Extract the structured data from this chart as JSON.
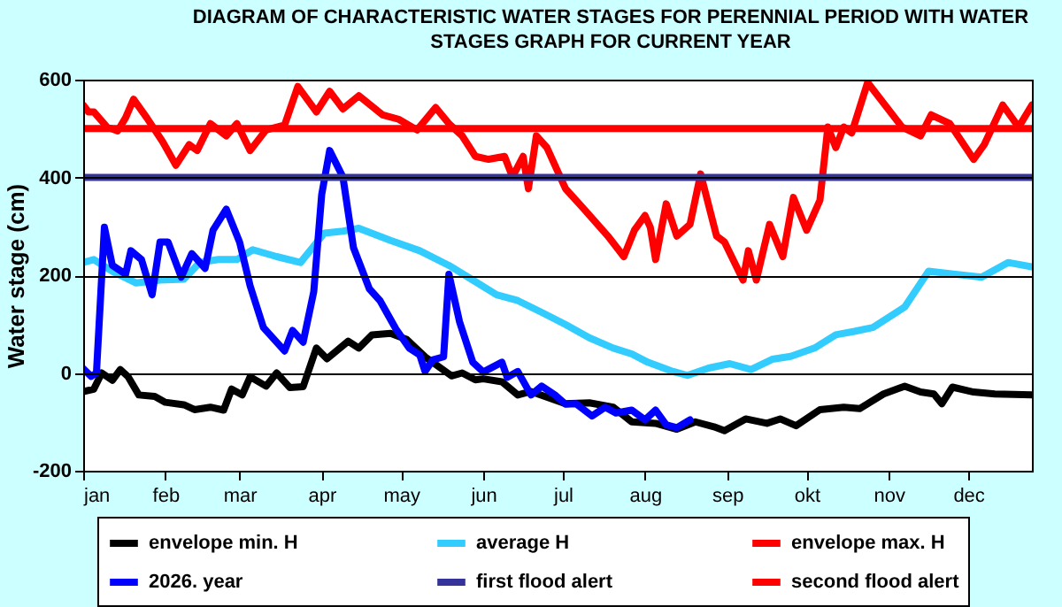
{
  "chart_data": {
    "type": "line",
    "title": "DIAGRAM OF CHARACTERISTIC WATER STAGES FOR PERENNIAL PERIOD WITH WATER STAGES GRAPH FOR CURRENT YEAR",
    "ylabel": "Water stage (cm)",
    "xlim": [
      "--01-01",
      "--12-25"
    ],
    "xticks": [
      {
        "value": "--01-01",
        "label": "jan"
      },
      {
        "value": "--02-01",
        "label": "feb"
      },
      {
        "value": "--03-01",
        "label": "mar"
      },
      {
        "value": "--04-01",
        "label": "apr"
      },
      {
        "value": "--05-01",
        "label": "may"
      },
      {
        "value": "--06-01",
        "label": "jun"
      },
      {
        "value": "--07-01",
        "label": "jul"
      },
      {
        "value": "--08-01",
        "label": "aug"
      },
      {
        "value": "--09-01",
        "label": "sep"
      },
      {
        "value": "--10-01",
        "label": "okt"
      },
      {
        "value": "--11-01",
        "label": "nov"
      },
      {
        "value": "--12-01",
        "label": "dec"
      }
    ],
    "ylim": [
      -200,
      600
    ],
    "yticks": [
      -200,
      0,
      200,
      400,
      600
    ],
    "grid": "y",
    "legend": "bottom",
    "line_style": "solid",
    "series": [
      {
        "name": "envelope min. H",
        "color": "#000000",
        "x": [
          "--01-01",
          "--01-05",
          "--01-08",
          "--01-12",
          "--01-15",
          "--01-18",
          "--01-22",
          "--01-28",
          "--02-01",
          "--02-08",
          "--02-12",
          "--02-18",
          "--02-23",
          "--02-26",
          "--03-02",
          "--03-05",
          "--03-11",
          "--03-15",
          "--03-20",
          "--03-25",
          "--03-30",
          "--04-03",
          "--04-11",
          "--04-15",
          "--04-20",
          "--04-27",
          "--05-03",
          "--05-10",
          "--05-20",
          "--05-24",
          "--05-29",
          "--06-01",
          "--06-08",
          "--06-14",
          "--06-19",
          "--07-02",
          "--07-11",
          "--07-20",
          "--07-27",
          "--08-05",
          "--08-13",
          "--08-20",
          "--08-27",
          "--08-31",
          "--09-08",
          "--09-16",
          "--09-21",
          "--09-27",
          "--10-06",
          "--10-15",
          "--10-21",
          "--10-30",
          "--11-07",
          "--11-13",
          "--11-18",
          "--11-21",
          "--11-25",
          "--12-03",
          "--12-11",
          "--12-25"
        ],
        "values": [
          -38,
          -33,
          0,
          -15,
          7,
          -8,
          -45,
          -48,
          -60,
          -65,
          -75,
          -70,
          -76,
          -33,
          -45,
          -8,
          -27,
          0,
          -30,
          -28,
          51,
          29,
          65,
          51,
          78,
          81,
          69,
          33,
          -6,
          0,
          -14,
          -12,
          -18,
          -45,
          -38,
          -63,
          -61,
          -70,
          -100,
          -103,
          -115,
          -100,
          -110,
          -118,
          -94,
          -103,
          -94,
          -108,
          -75,
          -70,
          -73,
          -43,
          -27,
          -39,
          -43,
          -63,
          -29,
          -39,
          -43,
          -45
        ]
      },
      {
        "name": "average H",
        "color": "#33ccff",
        "x": [
          "--01-01",
          "--01-05",
          "--01-12",
          "--01-21",
          "--01-30",
          "--02-08",
          "--02-14",
          "--02-21",
          "--02-28",
          "--03-06",
          "--03-15",
          "--03-24",
          "--04-02",
          "--04-09",
          "--04-15",
          "--04-27",
          "--05-08",
          "--05-19",
          "--05-28",
          "--06-06",
          "--06-14",
          "--06-23",
          "--07-02",
          "--07-11",
          "--07-20",
          "--07-27",
          "--08-02",
          "--08-11",
          "--08-17",
          "--08-25",
          "--09-02",
          "--09-10",
          "--09-18",
          "--09-25",
          "--10-04",
          "--10-12",
          "--10-19",
          "--10-26",
          "--11-07",
          "--11-16",
          "--11-26",
          "--12-06",
          "--12-16",
          "--12-25"
        ],
        "values": [
          226,
          232,
          208,
          184,
          190,
          192,
          226,
          232,
          232,
          252,
          238,
          226,
          286,
          290,
          296,
          271,
          250,
          220,
          190,
          160,
          148,
          124,
          99,
          72,
          51,
          39,
          22,
          4,
          -5,
          10,
          19,
          7,
          28,
          34,
          51,
          78,
          85,
          93,
          135,
          208,
          202,
          196,
          226,
          217
        ]
      },
      {
        "name": "envelope max. H",
        "color": "#ff0000",
        "x": [
          "--01-01",
          "--01-03",
          "--01-05",
          "--01-10",
          "--01-14",
          "--01-17",
          "--01-20",
          "--01-25",
          "--01-31",
          "--02-05",
          "--02-10",
          "--02-13",
          "--02-18",
          "--02-24",
          "--02-28",
          "--03-05",
          "--03-11",
          "--03-18",
          "--03-23",
          "--03-30",
          "--04-04",
          "--04-09",
          "--04-15",
          "--04-24",
          "--04-30",
          "--05-07",
          "--05-14",
          "--05-19",
          "--05-24",
          "--05-29",
          "--06-03",
          "--06-09",
          "--06-12",
          "--06-16",
          "--06-18",
          "--06-21",
          "--06-25",
          "--07-02",
          "--07-09",
          "--07-18",
          "--07-24",
          "--07-28",
          "--08-01",
          "--08-03",
          "--08-05",
          "--08-09",
          "--08-13",
          "--08-18",
          "--08-22",
          "--08-28",
          "--08-31",
          "--09-07",
          "--09-09",
          "--09-12",
          "--09-17",
          "--09-22",
          "--09-26",
          "--10-01",
          "--10-06",
          "--10-09",
          "--10-12",
          "--10-15",
          "--10-18",
          "--10-24",
          "--11-06",
          "--11-13",
          "--11-17",
          "--11-24",
          "--12-03",
          "--12-07",
          "--12-14",
          "--12-20",
          "--12-25"
        ],
        "values": [
          548,
          534,
          534,
          503,
          495,
          522,
          560,
          522,
          473,
          425,
          467,
          455,
          510,
          485,
          510,
          455,
          497,
          507,
          586,
          534,
          576,
          540,
          567,
          528,
          519,
          497,
          543,
          510,
          485,
          443,
          437,
          443,
          401,
          443,
          377,
          485,
          461,
          377,
          335,
          280,
          238,
          292,
          322,
          298,
          232,
          346,
          280,
          304,
          407,
          280,
          268,
          190,
          250,
          190,
          304,
          238,
          359,
          292,
          353,
          503,
          461,
          503,
          491,
          594,
          503,
          485,
          528,
          510,
          437,
          467,
          548,
          503,
          548
        ]
      },
      {
        "name": "2026. year",
        "color": "#0000ff",
        "x": [
          "--01-01",
          "--01-04",
          "--01-06",
          "--01-09",
          "--01-12",
          "--01-17",
          "--01-19",
          "--01-23",
          "--01-27",
          "--01-30",
          "--02-02",
          "--02-07",
          "--02-11",
          "--02-16",
          "--02-19",
          "--02-24",
          "--03-01",
          "--03-05",
          "--03-10",
          "--03-18",
          "--03-21",
          "--03-25",
          "--03-29",
          "--04-01",
          "--04-04",
          "--04-09",
          "--04-13",
          "--04-19",
          "--04-23",
          "--04-29",
          "--05-04",
          "--05-08",
          "--05-10",
          "--05-13",
          "--05-17",
          "--05-19",
          "--05-23",
          "--05-28",
          "--06-01",
          "--06-08",
          "--06-10",
          "--06-14",
          "--06-19",
          "--06-23",
          "--06-28",
          "--07-02",
          "--07-06",
          "--07-12",
          "--07-17",
          "--07-21",
          "--07-27",
          "--08-01",
          "--08-05",
          "--08-09",
          "--08-13",
          "--08-18"
        ],
        "values": [
          9,
          -7,
          0,
          298,
          220,
          202,
          250,
          232,
          160,
          268,
          268,
          196,
          244,
          214,
          292,
          335,
          268,
          178,
          93,
          45,
          87,
          63,
          166,
          365,
          455,
          401,
          256,
          172,
          148,
          90,
          51,
          37,
          3,
          27,
          33,
          202,
          105,
          22,
          2,
          22,
          -9,
          3,
          -45,
          -27,
          -45,
          -64,
          -63,
          -88,
          -70,
          -82,
          -76,
          -96,
          -76,
          -106,
          -112,
          -96
        ]
      },
      {
        "name": "first flood alert",
        "color": "#333399",
        "x": [
          "--01-01",
          "--12-25"
        ],
        "values": [
          400,
          400
        ]
      },
      {
        "name": "second flood alert",
        "color": "#ff0000",
        "x": [
          "--01-01",
          "--12-25"
        ],
        "values": [
          500,
          500
        ]
      }
    ]
  }
}
